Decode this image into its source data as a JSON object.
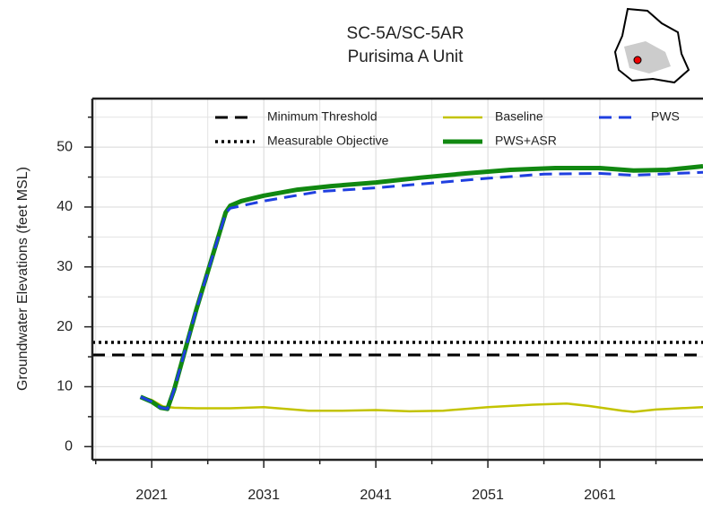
{
  "chart_data": {
    "type": "line",
    "title": [
      "SC-5A/SC-5AR",
      "Purisima A Unit"
    ],
    "y_label": "Groundwater Elevations (feet MSL)",
    "xlim": [
      2015.7,
      2070.2
    ],
    "xticks": [
      2021,
      2031,
      2041,
      2051,
      2061
    ],
    "xminorticks": [
      2016,
      2026,
      2036,
      2046,
      2056,
      2066
    ],
    "ylim": [
      -2.2,
      58.1
    ],
    "yticks": [
      0,
      10,
      20,
      30,
      40,
      50
    ],
    "yminorticks": [
      5,
      15,
      25,
      35,
      45,
      55
    ],
    "grid": true,
    "hlines": [
      {
        "name": "Minimum Threshold",
        "value": 15.3,
        "color": "#000000",
        "style": "dashed"
      },
      {
        "name": "Measurable Objective",
        "value": 17.4,
        "color": "#000000",
        "style": "dotted"
      }
    ],
    "series": [
      {
        "name": "Baseline",
        "color": "#c3c300",
        "style": "solid",
        "x": [
          2020,
          2021,
          2022,
          2023,
          2025,
          2028,
          2031,
          2035,
          2038,
          2041,
          2044,
          2047,
          2051,
          2055,
          2058,
          2060,
          2063,
          2064,
          2066,
          2070.2
        ],
        "values": [
          8.3,
          7.8,
          6.7,
          6.5,
          6.4,
          6.4,
          6.6,
          6.0,
          6.0,
          6.1,
          5.9,
          6.0,
          6.6,
          7.0,
          7.2,
          6.8,
          6.0,
          5.8,
          6.2,
          6.6
        ]
      },
      {
        "name": "PWS+ASR",
        "color": "#118811",
        "style": "thick",
        "x": [
          2020,
          2021,
          2021.8,
          2022.4,
          2023,
          2025,
          2027.6,
          2028,
          2029,
          2031,
          2034,
          2037,
          2041,
          2045,
          2049,
          2053,
          2057,
          2061,
          2064,
          2067,
          2070.2
        ],
        "values": [
          8.3,
          7.5,
          6.5,
          6.3,
          9.5,
          23,
          39.1,
          40.2,
          41.0,
          41.9,
          42.9,
          43.5,
          44.1,
          44.9,
          45.6,
          46.2,
          46.5,
          46.5,
          46.1,
          46.2,
          46.8
        ]
      },
      {
        "name": "PWS",
        "color": "#1f3fe0",
        "style": "dashed",
        "x": [
          2020,
          2021,
          2021.8,
          2022.4,
          2023,
          2025,
          2027.6,
          2028,
          2031,
          2036,
          2041,
          2046,
          2051,
          2056,
          2061,
          2064,
          2070.2
        ],
        "values": [
          8.3,
          7.5,
          6.5,
          6.3,
          9.5,
          23,
          39.0,
          39.8,
          41.0,
          42.6,
          43.2,
          44.0,
          44.8,
          45.5,
          45.6,
          45.3,
          45.8
        ]
      }
    ]
  }
}
